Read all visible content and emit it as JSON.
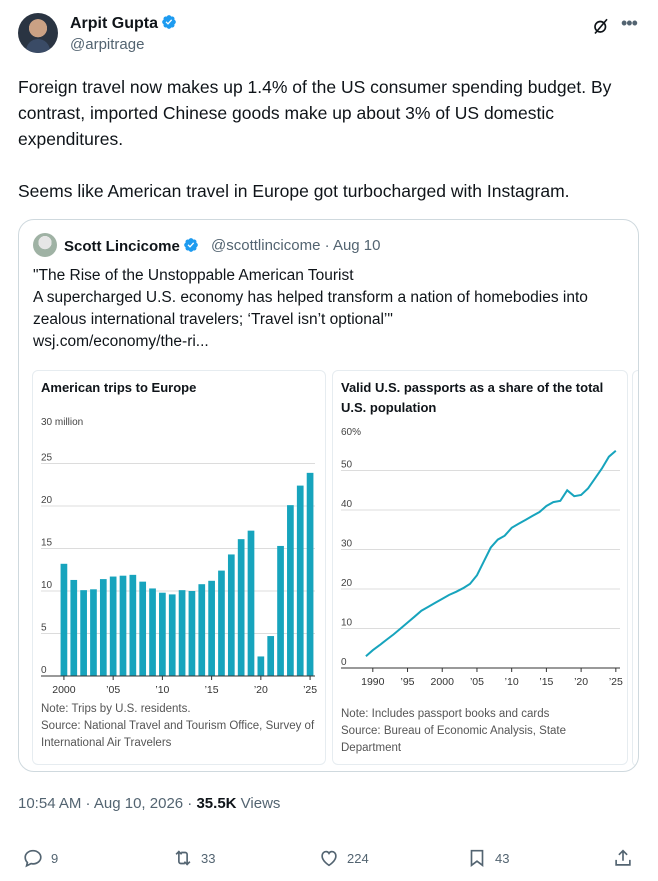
{
  "post": {
    "author_name": "Arpit Gupta",
    "author_handle": "@arpitrage",
    "text": "Foreign travel now makes up 1.4% of the US consumer spending budget. By contrast, imported Chinese goods make up about 3% of US domestic expenditures.\n\nSeems like American travel in Europe got turbocharged with Instagram.",
    "timestamp": "10:54 AM · Aug 10, 2026 · ",
    "views_count": "35.5K",
    "views_label": " Views",
    "replies": "9",
    "reposts": "33",
    "likes": "224",
    "bookmarks": "43"
  },
  "quote": {
    "author_name": "Scott Lincicome",
    "author_handle": "@scottlincicome",
    "date": "· Aug 10",
    "line1": "\"The Rise of the Unstoppable American Tourist",
    "line2": "A supercharged U.S. economy has helped transform a nation of homebodies into",
    "line3": "zealous international travelers; ‘Travel isn’t optional’\"",
    "link": "wsj.com/economy/the-ri..."
  },
  "icons": [
    "verified-badge-icon",
    "grok-icon",
    "more-icon",
    "reply-icon",
    "repost-icon",
    "like-icon",
    "bookmark-icon",
    "share-icon"
  ],
  "colors": {
    "accent": "#1d9bf0",
    "chart": "#17a4bd",
    "muted": "#536471"
  },
  "chart_data": [
    {
      "type": "bar",
      "title": "American trips to Europe",
      "unit_label": "30 million",
      "categories": [
        "2000",
        "2001",
        "2002",
        "2003",
        "2004",
        "2005",
        "2006",
        "2007",
        "2008",
        "2009",
        "2010",
        "2011",
        "2012",
        "2013",
        "2014",
        "2015",
        "2016",
        "2017",
        "2018",
        "2019",
        "2020",
        "2021",
        "2022",
        "2023",
        "2024",
        "2025"
      ],
      "values": [
        13.2,
        11.3,
        10.1,
        10.2,
        11.4,
        11.7,
        11.8,
        11.9,
        11.1,
        10.3,
        9.8,
        9.6,
        10.1,
        10.0,
        10.8,
        11.2,
        12.4,
        14.3,
        16.1,
        17.1,
        2.3,
        4.7,
        15.3,
        20.1,
        22.4,
        23.9
      ],
      "yticks": [
        "0",
        "5",
        "10",
        "15",
        "20",
        "25"
      ],
      "xticks": [
        "2000",
        "’05",
        "’10",
        "’15",
        "’20",
        "’25"
      ],
      "ylim": [
        0,
        30
      ],
      "note": "Note: Trips by U.S. residents.",
      "source": "Source: National Travel and Tourism Office, Survey of International Air Travelers"
    },
    {
      "type": "line",
      "title": "Valid U.S. passports as a share of the total U.S. population",
      "unit_label": "60%",
      "x": [
        1989,
        1990,
        1991,
        1992,
        1993,
        1994,
        1995,
        1996,
        1997,
        1998,
        1999,
        2000,
        2001,
        2002,
        2003,
        2004,
        2005,
        2006,
        2007,
        2008,
        2009,
        2010,
        2011,
        2012,
        2013,
        2014,
        2015,
        2016,
        2017,
        2018,
        2019,
        2020,
        2021,
        2022,
        2023,
        2024,
        2025
      ],
      "y": [
        3,
        4.5,
        5.8,
        7.2,
        8.5,
        10,
        11.5,
        13,
        14.5,
        15.5,
        16.5,
        17.5,
        18.5,
        19.3,
        20.2,
        21.3,
        23.5,
        27,
        30.5,
        32.5,
        33.5,
        35.5,
        36.5,
        37.5,
        38.5,
        39.5,
        41,
        42,
        42.3,
        45,
        43.5,
        43.8,
        45.5,
        48,
        50.5,
        53.5,
        55
      ],
      "yticks": [
        "0",
        "10",
        "20",
        "30",
        "40",
        "50"
      ],
      "xticks": [
        "1990",
        "’95",
        "2000",
        "’05",
        "’10",
        "’15",
        "’20",
        "’25"
      ],
      "ylim": [
        0,
        60
      ],
      "note": "Note: Includes passport books and cards",
      "source": "Source: Bureau of Economic Analysis, State Department"
    }
  ]
}
